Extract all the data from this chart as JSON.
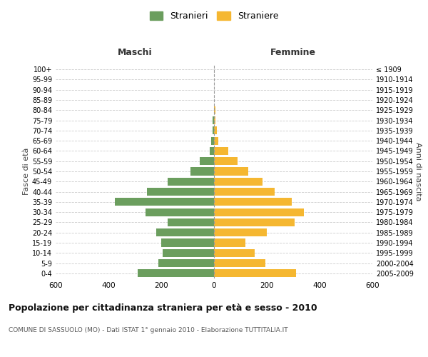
{
  "age_groups": [
    "0-4",
    "5-9",
    "10-14",
    "15-19",
    "20-24",
    "25-29",
    "30-34",
    "35-39",
    "40-44",
    "45-49",
    "50-54",
    "55-59",
    "60-64",
    "65-69",
    "70-74",
    "75-79",
    "80-84",
    "85-89",
    "90-94",
    "95-99",
    "100+"
  ],
  "birth_years": [
    "2005-2009",
    "2000-2004",
    "1995-1999",
    "1990-1994",
    "1985-1989",
    "1980-1984",
    "1975-1979",
    "1970-1974",
    "1965-1969",
    "1960-1964",
    "1955-1959",
    "1950-1954",
    "1945-1949",
    "1940-1944",
    "1935-1939",
    "1930-1934",
    "1925-1929",
    "1920-1924",
    "1915-1919",
    "1910-1914",
    "≤ 1909"
  ],
  "maschi": [
    290,
    210,
    195,
    200,
    220,
    175,
    260,
    375,
    255,
    175,
    90,
    55,
    15,
    10,
    5,
    5,
    0,
    0,
    0,
    0,
    0
  ],
  "femmine": [
    310,
    195,
    155,
    120,
    200,
    305,
    340,
    295,
    230,
    185,
    130,
    90,
    55,
    15,
    10,
    5,
    5,
    0,
    0,
    0,
    0
  ],
  "color_maschi": "#6b9e5e",
  "color_femmine": "#f5b731",
  "title": "Popolazione per cittadinanza straniera per età e sesso - 2010",
  "subtitle": "COMUNE DI SASSUOLO (MO) - Dati ISTAT 1° gennaio 2010 - Elaborazione TUTTITALIA.IT",
  "legend_maschi": "Stranieri",
  "legend_femmine": "Straniere",
  "header_left": "Maschi",
  "header_right": "Femmine",
  "ylabel_left": "Fasce di età",
  "ylabel_right": "Anni di nascita",
  "xlim": 600,
  "background_color": "#ffffff",
  "grid_color": "#cccccc"
}
